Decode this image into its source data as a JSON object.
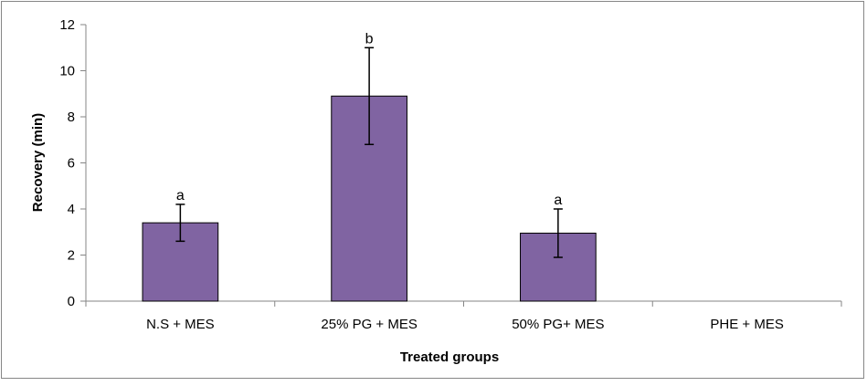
{
  "chart_data": {
    "type": "bar",
    "title": "",
    "xlabel": "Treated groups",
    "ylabel": "Recovery (min)",
    "ylim": [
      0,
      12
    ],
    "yticks": [
      "0",
      "2",
      "4",
      "6",
      "8",
      "10",
      "12"
    ],
    "categories": [
      "N.S + MES",
      "25% PG + MES",
      "50% PG+ MES",
      "PHE + MES"
    ],
    "values": [
      3.4,
      8.9,
      2.95,
      0
    ],
    "error": [
      0.8,
      2.1,
      1.05,
      0
    ],
    "significance": [
      "a",
      "b",
      "a",
      ""
    ],
    "legend": "none",
    "grid": false,
    "colors": {
      "bar": "#8064A2",
      "bar_stroke": "#000000",
      "axis": "#868686",
      "frame": "#868686"
    }
  }
}
